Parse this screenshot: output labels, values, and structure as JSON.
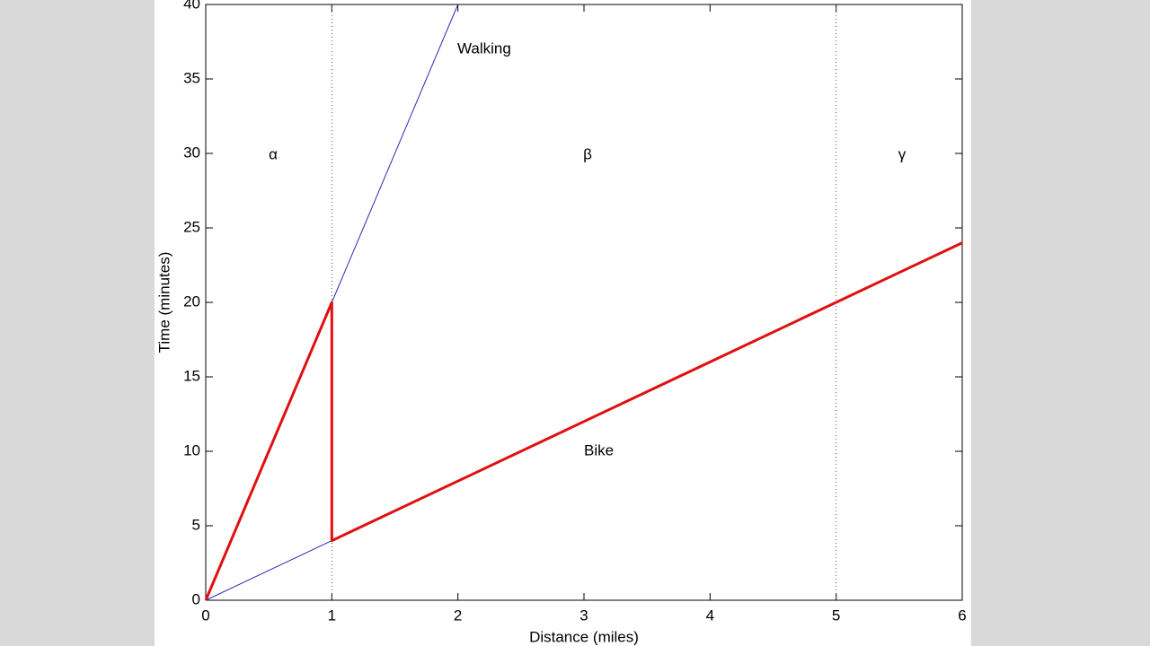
{
  "chart_data": {
    "type": "line",
    "xlabel": "Distance (miles)",
    "ylabel": "Time (minutes)",
    "xlim": [
      0,
      6
    ],
    "ylim": [
      0,
      40
    ],
    "xticks": [
      0,
      1,
      2,
      3,
      4,
      5,
      6
    ],
    "yticks": [
      0,
      5,
      10,
      15,
      20,
      25,
      30,
      35,
      40
    ],
    "vlines": [
      1,
      5
    ],
    "series": [
      {
        "color": "#2b2bb0",
        "x": [
          0,
          2
        ],
        "values": [
          0,
          40
        ]
      },
      {
        "color": "#2b2bb0",
        "x": [
          0,
          1
        ],
        "values": [
          0,
          4
        ]
      },
      {
        "color": "#e01010",
        "x": [
          0,
          1,
          1,
          6
        ],
        "values": [
          0,
          20,
          4,
          24
        ]
      }
    ],
    "annotations": [
      "Walking",
      "Bike",
      "α",
      "β",
      "γ"
    ]
  }
}
